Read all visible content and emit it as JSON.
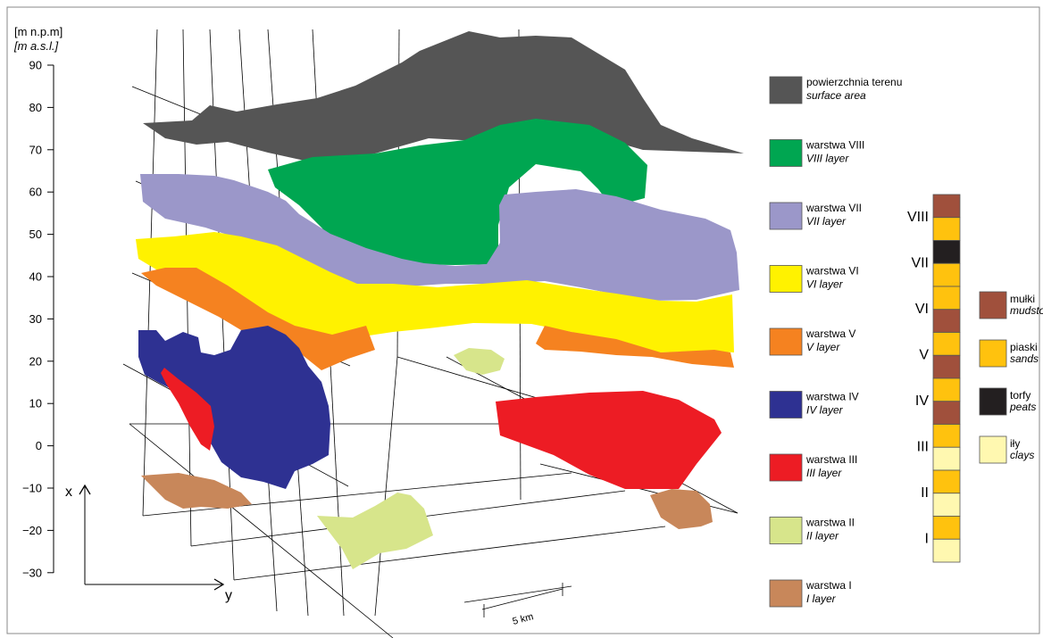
{
  "axis": {
    "unit_pl": "[m n.p.m]",
    "unit_en": "[m a.s.l.]",
    "ticks": [
      "90",
      "80",
      "70",
      "60",
      "50",
      "40",
      "30",
      "20",
      "10",
      "0",
      "−10",
      "−20",
      "−30"
    ],
    "x_label": "x",
    "y_label": "y",
    "scale_label": "5 km"
  },
  "legend": [
    {
      "pl": "powierzchnia terenu",
      "en": "surface area",
      "color": "#555555"
    },
    {
      "pl": "warstwa VIII",
      "en": "VIII layer",
      "color": "#00a651"
    },
    {
      "pl": "warstwa VII",
      "en": "VII layer",
      "color": "#9b97c9"
    },
    {
      "pl": "warstwa VI",
      "en": "VI layer",
      "color": "#fff200"
    },
    {
      "pl": "warstwa V",
      "en": "V layer",
      "color": "#f58220"
    },
    {
      "pl": "warstwa IV",
      "en": "IV layer",
      "color": "#2e3192"
    },
    {
      "pl": "warstwa III",
      "en": "III layer",
      "color": "#ed1c24"
    },
    {
      "pl": "warstwa II",
      "en": "II layer",
      "color": "#d7e58b"
    },
    {
      "pl": "warstwa I",
      "en": "I layer",
      "color": "#c8875a"
    }
  ],
  "column": {
    "labels": [
      "VIII",
      "VII",
      "VI",
      "V",
      "IV",
      "III",
      "II",
      "I"
    ],
    "cells": [
      "mud",
      "sand",
      "peat",
      "sand",
      "sand",
      "mud",
      "sand",
      "mud",
      "sand",
      "mud",
      "sand",
      "clay",
      "sand",
      "clay",
      "sand",
      "clay"
    ]
  },
  "lithology": [
    {
      "key": "mud",
      "pl": "mułki",
      "en": "mudstones",
      "color": "#a0503c"
    },
    {
      "key": "sand",
      "pl": "piaski",
      "en": "sands",
      "color": "#ffc20e"
    },
    {
      "key": "peat",
      "pl": "torfy",
      "en": "peats",
      "color": "#231f20"
    },
    {
      "key": "clay",
      "pl": "iły",
      "en": "clays",
      "color": "#fff8b0"
    }
  ]
}
